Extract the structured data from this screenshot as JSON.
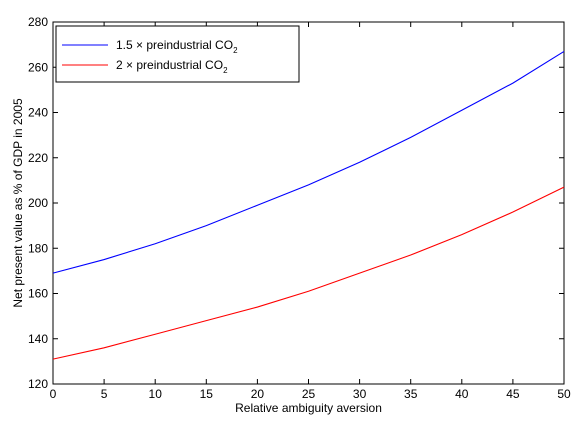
{
  "chart_data": {
    "type": "line",
    "title": "",
    "xlabel": "Relative ambiguity aversion",
    "ylabel": "Net present value as % of GDP in 2005",
    "xlim": [
      0,
      50
    ],
    "ylim": [
      120,
      280
    ],
    "xticks": [
      0,
      5,
      10,
      15,
      20,
      25,
      30,
      35,
      40,
      45,
      50
    ],
    "yticks": [
      120,
      140,
      160,
      180,
      200,
      220,
      240,
      260,
      280
    ],
    "grid": false,
    "legend_position": "top-left",
    "series": [
      {
        "name": "1.5 × preindustrial CO",
        "name_subscript": "2",
        "color": "#0000ff",
        "x": [
          0,
          5,
          10,
          15,
          20,
          25,
          30,
          35,
          40,
          45,
          50
        ],
        "y": [
          169,
          175,
          182,
          190,
          199,
          208,
          218,
          229,
          241,
          253,
          267
        ]
      },
      {
        "name": "2 × preindustrial CO",
        "name_subscript": "2",
        "color": "#ff0000",
        "x": [
          0,
          5,
          10,
          15,
          20,
          25,
          30,
          35,
          40,
          45,
          50
        ],
        "y": [
          131,
          136,
          142,
          148,
          154,
          161,
          169,
          177,
          186,
          196,
          207
        ]
      }
    ]
  }
}
